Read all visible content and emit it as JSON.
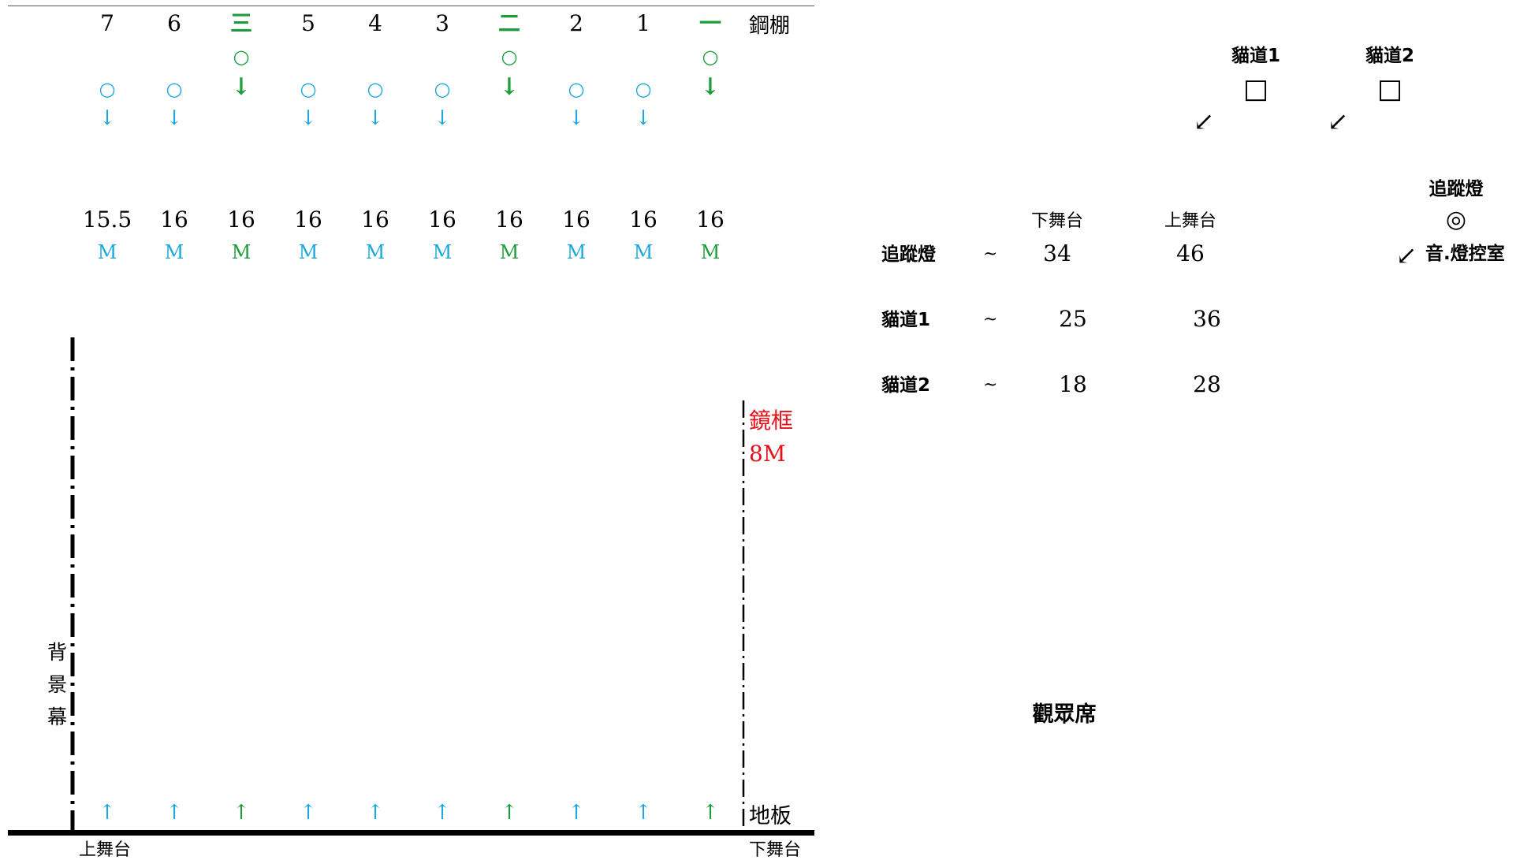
{
  "colors": {
    "cyan": "#1aa7e0",
    "green": "#1c9c3c",
    "red": "#e8101a",
    "black": "#000000"
  },
  "battens": [
    {
      "label": "7",
      "type": "electric",
      "height": "15.5",
      "unit": "M"
    },
    {
      "label": "6",
      "type": "electric",
      "height": "16",
      "unit": "M"
    },
    {
      "label": "三",
      "type": "light",
      "height": "16",
      "unit": "M"
    },
    {
      "label": "5",
      "type": "electric",
      "height": "16",
      "unit": "M"
    },
    {
      "label": "4",
      "type": "electric",
      "height": "16",
      "unit": "M"
    },
    {
      "label": "3",
      "type": "electric",
      "height": "16",
      "unit": "M"
    },
    {
      "label": "二",
      "type": "light",
      "height": "16",
      "unit": "M"
    },
    {
      "label": "2",
      "type": "electric",
      "height": "16",
      "unit": "M"
    },
    {
      "label": "1",
      "type": "electric",
      "height": "16",
      "unit": "M"
    },
    {
      "label": "一",
      "type": "light",
      "height": "16",
      "unit": "M"
    }
  ],
  "symbols": {
    "circle": "○",
    "arrow_down": "↓",
    "arrow_up": "↑",
    "square": "□",
    "target": "◎",
    "diag_arrow": "↙"
  },
  "labels": {
    "grid": "鋼棚",
    "proscenium_title": "鏡框",
    "proscenium_height": "8M",
    "floor": "地板",
    "upstage": "上舞台",
    "downstage": "下舞台",
    "backdrop": [
      "背",
      "景",
      "幕"
    ]
  },
  "catwalks": {
    "cat1": "貓道1",
    "cat2": "貓道2",
    "follow_spot": "追蹤燈",
    "control_room": "音.燈控室",
    "audience": "觀眾席"
  },
  "distance_table": {
    "headers": [
      "下舞台",
      "上舞台"
    ],
    "rows": [
      {
        "name": "追蹤燈",
        "sep": "~",
        "down": "34",
        "up": "46"
      },
      {
        "name": "貓道1",
        "sep": "~",
        "down": "25",
        "up": "36"
      },
      {
        "name": "貓道2",
        "sep": "~",
        "down": "18",
        "up": "28"
      }
    ]
  }
}
